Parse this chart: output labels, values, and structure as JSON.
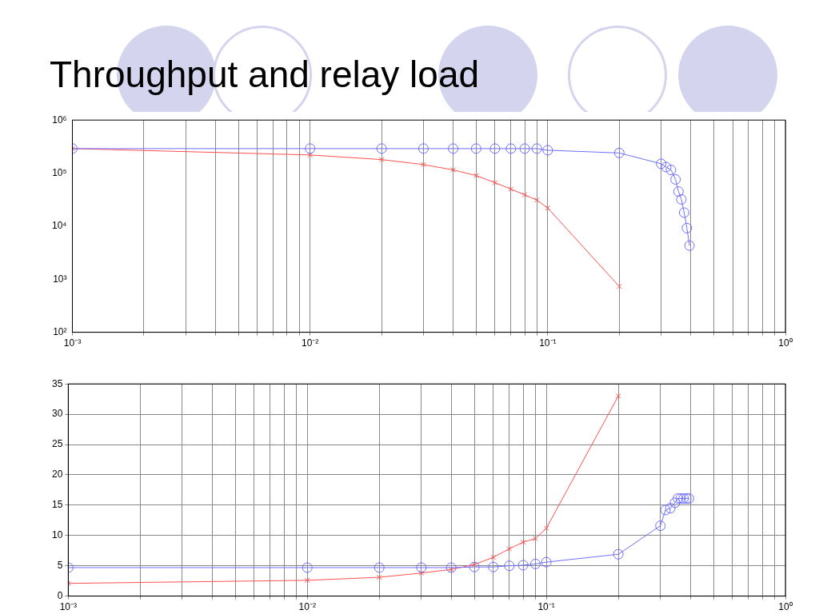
{
  "chart_data": [
    {
      "type": "line",
      "title": "Throughput and relay load",
      "log": "xy",
      "grid": "x",
      "xlim": [
        0.001,
        1
      ],
      "ylim": [
        100,
        1000000
      ],
      "xticks": [
        {
          "value": 0.001,
          "label": "10⁻³"
        },
        {
          "value": 0.002,
          "label": null
        },
        {
          "value": 0.003,
          "label": null
        },
        {
          "value": 0.004,
          "label": null
        },
        {
          "value": 0.005,
          "label": null
        },
        {
          "value": 0.006,
          "label": null
        },
        {
          "value": 0.007,
          "label": null
        },
        {
          "value": 0.008,
          "label": null
        },
        {
          "value": 0.009,
          "label": null
        },
        {
          "value": 0.01,
          "label": "10⁻²"
        },
        {
          "value": 0.02,
          "label": null
        },
        {
          "value": 0.03,
          "label": null
        },
        {
          "value": 0.04,
          "label": null
        },
        {
          "value": 0.05,
          "label": null
        },
        {
          "value": 0.06,
          "label": null
        },
        {
          "value": 0.07,
          "label": null
        },
        {
          "value": 0.08,
          "label": null
        },
        {
          "value": 0.09,
          "label": null
        },
        {
          "value": 0.1,
          "label": "10⁻¹"
        },
        {
          "value": 0.2,
          "label": null
        },
        {
          "value": 0.3,
          "label": null
        },
        {
          "value": 0.4,
          "label": null
        },
        {
          "value": 0.5,
          "label": null
        },
        {
          "value": 0.6,
          "label": null
        },
        {
          "value": 0.7,
          "label": null
        },
        {
          "value": 0.8,
          "label": null
        },
        {
          "value": 0.9,
          "label": null
        },
        {
          "value": 1,
          "label": "10⁰"
        }
      ],
      "yticks": [
        {
          "value": 100,
          "label": "10²"
        },
        {
          "value": 1000,
          "label": "10³"
        },
        {
          "value": 10000,
          "label": "10⁴"
        },
        {
          "value": 100000,
          "label": "10⁵"
        },
        {
          "value": 1000000,
          "label": "10⁶"
        }
      ],
      "series": [
        {
          "color": "#7070ff",
          "marker": "circle",
          "x": [
            0.001,
            0.01,
            0.02,
            0.03,
            0.04,
            0.05,
            0.06,
            0.07,
            0.08,
            0.09,
            0.1,
            0.2,
            0.3,
            0.315,
            0.33,
            0.345,
            0.355,
            0.365,
            0.375,
            0.385,
            0.395
          ],
          "values": [
            290000,
            290000,
            290000,
            290000,
            290000,
            290000,
            290000,
            290000,
            290000,
            290000,
            270000,
            240000,
            150000,
            130000,
            115000,
            76000,
            45000,
            32000,
            18000,
            9200,
            4300
          ]
        },
        {
          "color": "#ff5050",
          "marker": "cross",
          "x": [
            0.001,
            0.01,
            0.02,
            0.03,
            0.04,
            0.05,
            0.06,
            0.07,
            0.08,
            0.09,
            0.1,
            0.2
          ],
          "values": [
            290000,
            220000,
            180000,
            145000,
            115000,
            90000,
            66000,
            50000,
            39000,
            31000,
            22000,
            730
          ]
        }
      ]
    },
    {
      "type": "line",
      "log": "x",
      "grid": true,
      "xlim": [
        0.001,
        1
      ],
      "ylim": [
        0,
        35
      ],
      "xticks": [
        {
          "value": 0.001,
          "label": "10⁻³"
        },
        {
          "value": 0.002,
          "label": null
        },
        {
          "value": 0.003,
          "label": null
        },
        {
          "value": 0.004,
          "label": null
        },
        {
          "value": 0.005,
          "label": null
        },
        {
          "value": 0.006,
          "label": null
        },
        {
          "value": 0.007,
          "label": null
        },
        {
          "value": 0.008,
          "label": null
        },
        {
          "value": 0.009,
          "label": null
        },
        {
          "value": 0.01,
          "label": "10⁻²"
        },
        {
          "value": 0.02,
          "label": null
        },
        {
          "value": 0.03,
          "label": null
        },
        {
          "value": 0.04,
          "label": null
        },
        {
          "value": 0.05,
          "label": null
        },
        {
          "value": 0.06,
          "label": null
        },
        {
          "value": 0.07,
          "label": null
        },
        {
          "value": 0.08,
          "label": null
        },
        {
          "value": 0.09,
          "label": null
        },
        {
          "value": 0.1,
          "label": "10⁻¹"
        },
        {
          "value": 0.2,
          "label": null
        },
        {
          "value": 0.3,
          "label": null
        },
        {
          "value": 0.4,
          "label": null
        },
        {
          "value": 0.5,
          "label": null
        },
        {
          "value": 0.6,
          "label": null
        },
        {
          "value": 0.7,
          "label": null
        },
        {
          "value": 0.8,
          "label": null
        },
        {
          "value": 0.9,
          "label": null
        },
        {
          "value": 1,
          "label": "10⁰"
        }
      ],
      "yticks": [
        0,
        5,
        10,
        15,
        20,
        25,
        30,
        35
      ],
      "series": [
        {
          "color": "#7070ff",
          "marker": "circle",
          "x": [
            0.001,
            0.01,
            0.02,
            0.03,
            0.04,
            0.05,
            0.06,
            0.07,
            0.08,
            0.09,
            0.1,
            0.2,
            0.3,
            0.315,
            0.33,
            0.345,
            0.355,
            0.365,
            0.375,
            0.385,
            0.395
          ],
          "values": [
            4.7,
            4.7,
            4.7,
            4.7,
            4.7,
            4.8,
            4.8,
            5.0,
            5.1,
            5.3,
            5.6,
            6.9,
            11.6,
            14.2,
            14.5,
            15.4,
            16.1,
            16.1,
            16.1,
            16.1,
            16.1
          ]
        },
        {
          "color": "#ff5050",
          "marker": "cross",
          "x": [
            0.001,
            0.01,
            0.02,
            0.03,
            0.04,
            0.05,
            0.06,
            0.07,
            0.08,
            0.09,
            0.1,
            0.2
          ],
          "values": [
            2.1,
            2.6,
            3.1,
            3.8,
            4.4,
            5.2,
            6.4,
            7.8,
            8.9,
            9.5,
            11.2,
            33.0
          ]
        }
      ]
    }
  ]
}
